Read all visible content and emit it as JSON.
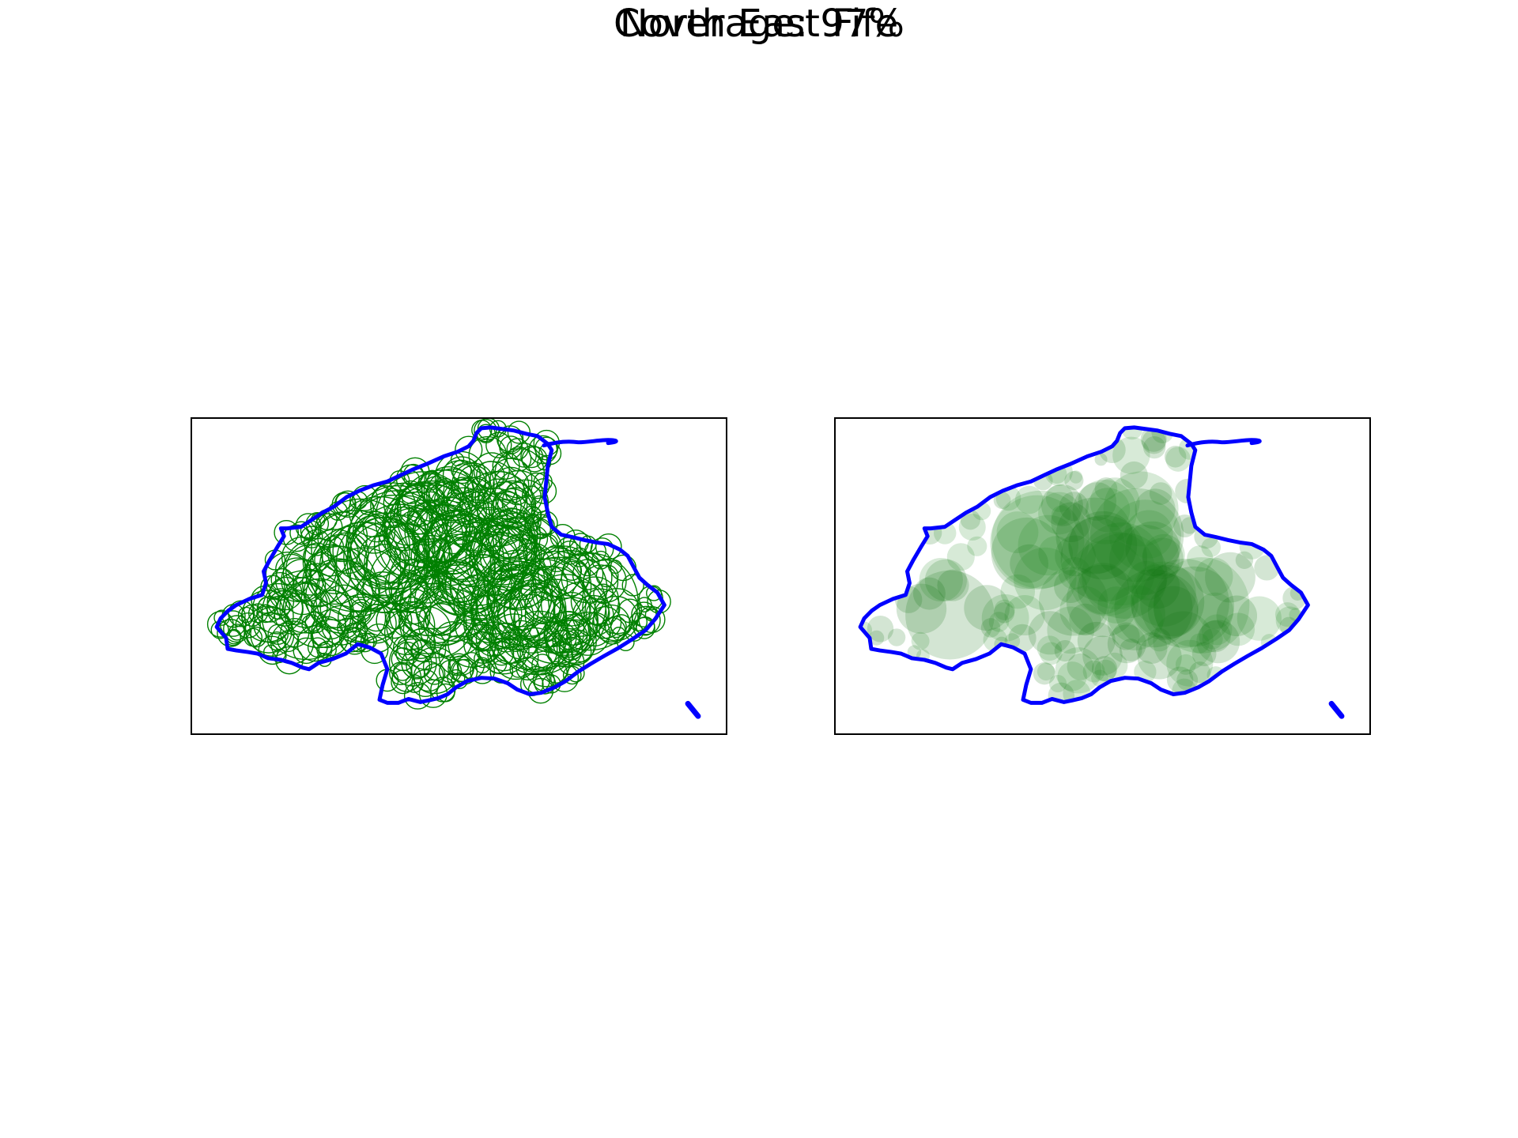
{
  "figure": {
    "title": "North East Fife",
    "coverage_label": "Coverage: 97%"
  },
  "map": {
    "coverage_percent": 97,
    "boundary_color": "#0000ff",
    "circle_color": "#008000",
    "panels": [
      {
        "id": "left",
        "style": "circle-outlines"
      },
      {
        "id": "right",
        "style": "filled-circles"
      }
    ]
  }
}
